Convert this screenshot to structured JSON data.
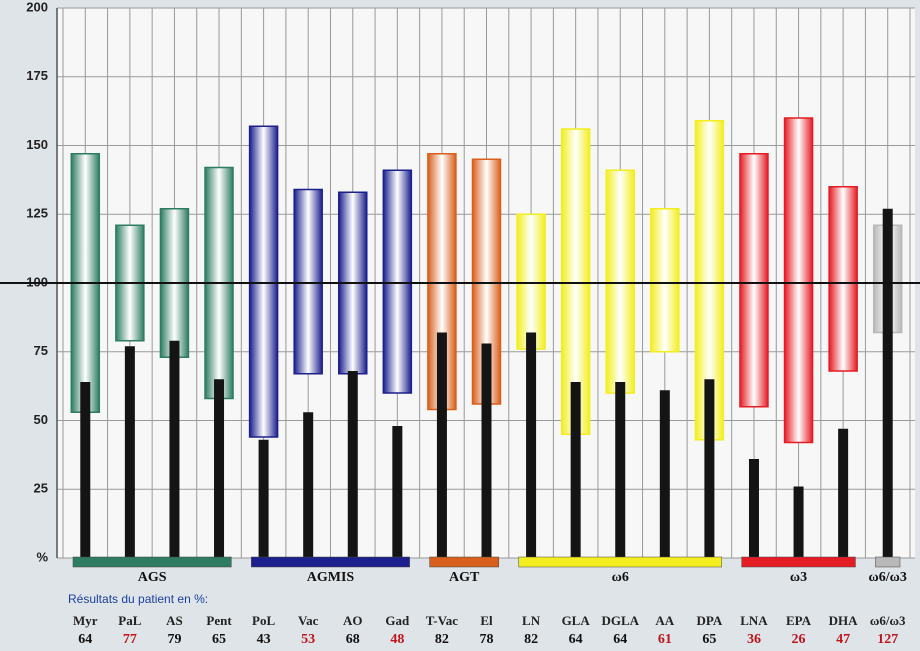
{
  "chart_data": {
    "type": "range_bar",
    "categories": [
      "Myr",
      "PaL",
      "AS",
      "Pent",
      "PoL",
      "Vac",
      "AO",
      "Gad",
      "T-Vac",
      "El",
      "LN",
      "GLA",
      "DGLA",
      "AA",
      "DPA",
      "LNA",
      "EPA",
      "DHA",
      "ω6/ω3"
    ],
    "range_low": [
      53,
      79,
      73,
      58,
      44,
      67,
      67,
      60,
      54,
      56,
      76,
      45,
      60,
      75,
      43,
      55,
      42,
      68,
      82
    ],
    "range_high": [
      147,
      121,
      127,
      142,
      157,
      134,
      133,
      141,
      147,
      145,
      125,
      156,
      141,
      127,
      159,
      147,
      160,
      135,
      121
    ],
    "values": [
      64,
      77,
      79,
      65,
      43,
      53,
      68,
      48,
      82,
      78,
      82,
      64,
      64,
      61,
      65,
      36,
      26,
      47,
      127
    ],
    "value_label_colors": [
      "#111",
      "#c0141c",
      "#111",
      "#111",
      "#111",
      "#c0141c",
      "#111",
      "#c0141c",
      "#111",
      "#111",
      "#111",
      "#111",
      "#111",
      "#c0141c",
      "#111",
      "#c0141c",
      "#c0141c",
      "#c0141c",
      "#c0141c"
    ],
    "patient_color": "#141414",
    "groups": [
      {
        "name": "AGS",
        "size": 4,
        "color": "#2e7d62"
      },
      {
        "name": "AGMIS",
        "size": 4,
        "color": "#1c1f8c"
      },
      {
        "name": "AGT",
        "size": 2,
        "color": "#d8601c"
      },
      {
        "name": "ω6",
        "size": 5,
        "color": "#f2ee20"
      },
      {
        "name": "ω3",
        "size": 3,
        "color": "#e41c24"
      },
      {
        "name": "ω6/ω3",
        "size": 1,
        "color": "#b8b8b8"
      }
    ],
    "patient_caption": "Résultats du patient en %:",
    "reference_line": 100,
    "ylim": [
      0,
      200
    ],
    "yticks": [
      {
        "value": 0,
        "label": "%"
      },
      25,
      50,
      75,
      100,
      125,
      150,
      175,
      200
    ],
    "grid": true
  }
}
